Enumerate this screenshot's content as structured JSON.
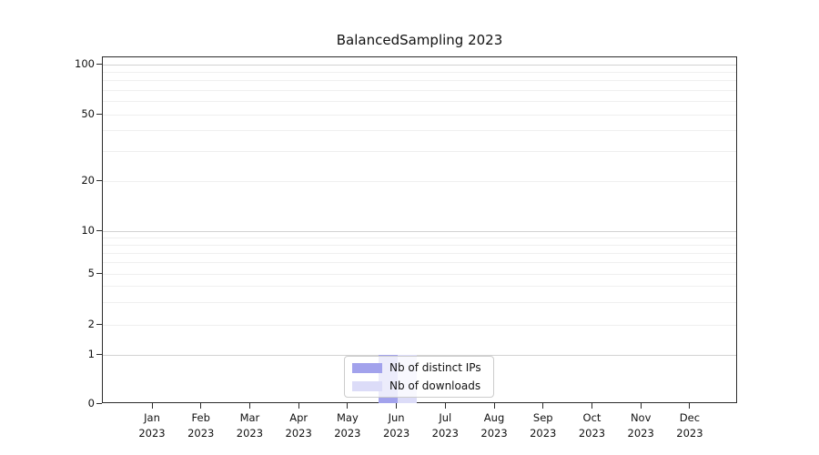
{
  "title": "BalancedSampling 2023",
  "chart_data": {
    "type": "bar",
    "title": "BalancedSampling 2023",
    "categories": [
      "Jan 2023",
      "Feb 2023",
      "Mar 2023",
      "Apr 2023",
      "May 2023",
      "Jun 2023",
      "Jul 2023",
      "Aug 2023",
      "Sep 2023",
      "Oct 2023",
      "Nov 2023",
      "Dec 2023"
    ],
    "series": [
      {
        "name": "Nb of distinct IPs",
        "color": "#a2a2ec",
        "values": [
          0,
          0,
          0,
          0,
          0,
          1,
          0,
          0,
          0,
          0,
          0,
          0
        ]
      },
      {
        "name": "Nb of downloads",
        "color": "#dcdcf8",
        "values": [
          0,
          0,
          0,
          0,
          0,
          1,
          0,
          0,
          0,
          0,
          0,
          0
        ]
      }
    ],
    "xlabel": "",
    "ylabel": "",
    "yscale": "symlog",
    "yticks": [
      0,
      1,
      2,
      5,
      10,
      20,
      50,
      100
    ],
    "ylim": [
      0,
      110
    ],
    "grid": true,
    "legend_position": "lower center"
  },
  "colors": {
    "background": "#ffffff",
    "spine": "#2b2b2b",
    "grid_major": "#d2d2d2",
    "grid_minor": "#efefef",
    "text": "#111111"
  }
}
